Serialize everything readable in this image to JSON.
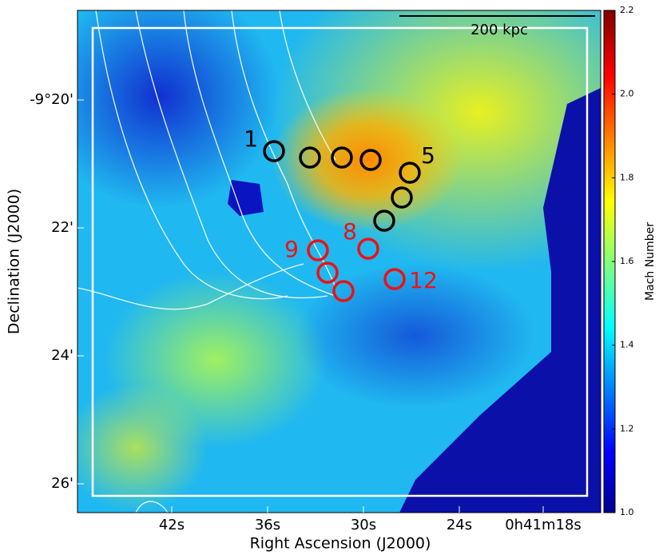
{
  "figure": {
    "xlabel": "Right Ascension (J2000)",
    "ylabel": "Declination (J2000)",
    "xticks": [
      "42s",
      "36s",
      "30s",
      "24s",
      "0h41m18s"
    ],
    "yticks": [
      "-9°20'",
      "22'",
      "24'",
      "26'"
    ],
    "scalebar": "200 kpc",
    "colorbar": {
      "label": "Mach Number",
      "lim": [
        1.0,
        2.2
      ],
      "ticks": [
        {
          "value": 1.0,
          "label": "1.0"
        },
        {
          "value": 1.2,
          "label": "1.2"
        },
        {
          "value": 1.4,
          "label": "1.4"
        },
        {
          "value": 1.6,
          "label": "1.6"
        },
        {
          "value": 1.8,
          "label": "1.8"
        },
        {
          "value": 2.0,
          "label": "2.0"
        },
        {
          "value": 2.2,
          "label": "2.2"
        }
      ]
    },
    "annotations": [
      "1",
      "5",
      "8",
      "9",
      "12"
    ]
  }
}
